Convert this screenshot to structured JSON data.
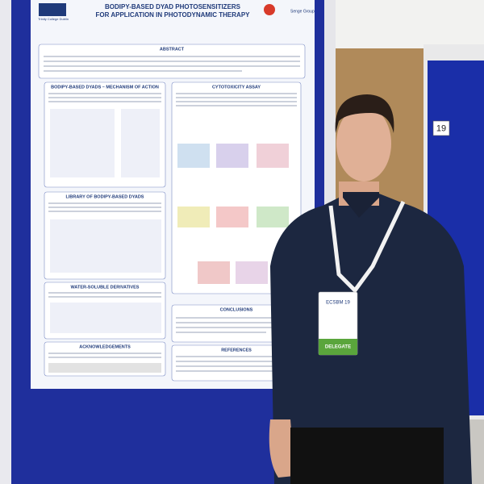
{
  "poster": {
    "title": "BODIPY-BASED DYAD PHOTOSENSITIZERS",
    "subtitle": "FOR APPLICATION IN PHOTODYNAMIC THERAPY",
    "institution": "Trinity College Dublin",
    "group": "Senge Group",
    "sections": [
      "ABSTRACT",
      "BODIPY-BASED DYADS – MECHANISM OF ACTION",
      "CYTOTOXICITY ASSAY",
      "LIBRARY OF BODIPY-BASED DYADS",
      "WATER-SOLUBLE DERIVATIVES",
      "CONCLUSIONS",
      "ACKNOWLEDGEMENTS",
      "REFERENCES"
    ]
  },
  "board_number": "19",
  "badge": {
    "event": "ECSBM 19",
    "role": "DELEGATE"
  }
}
